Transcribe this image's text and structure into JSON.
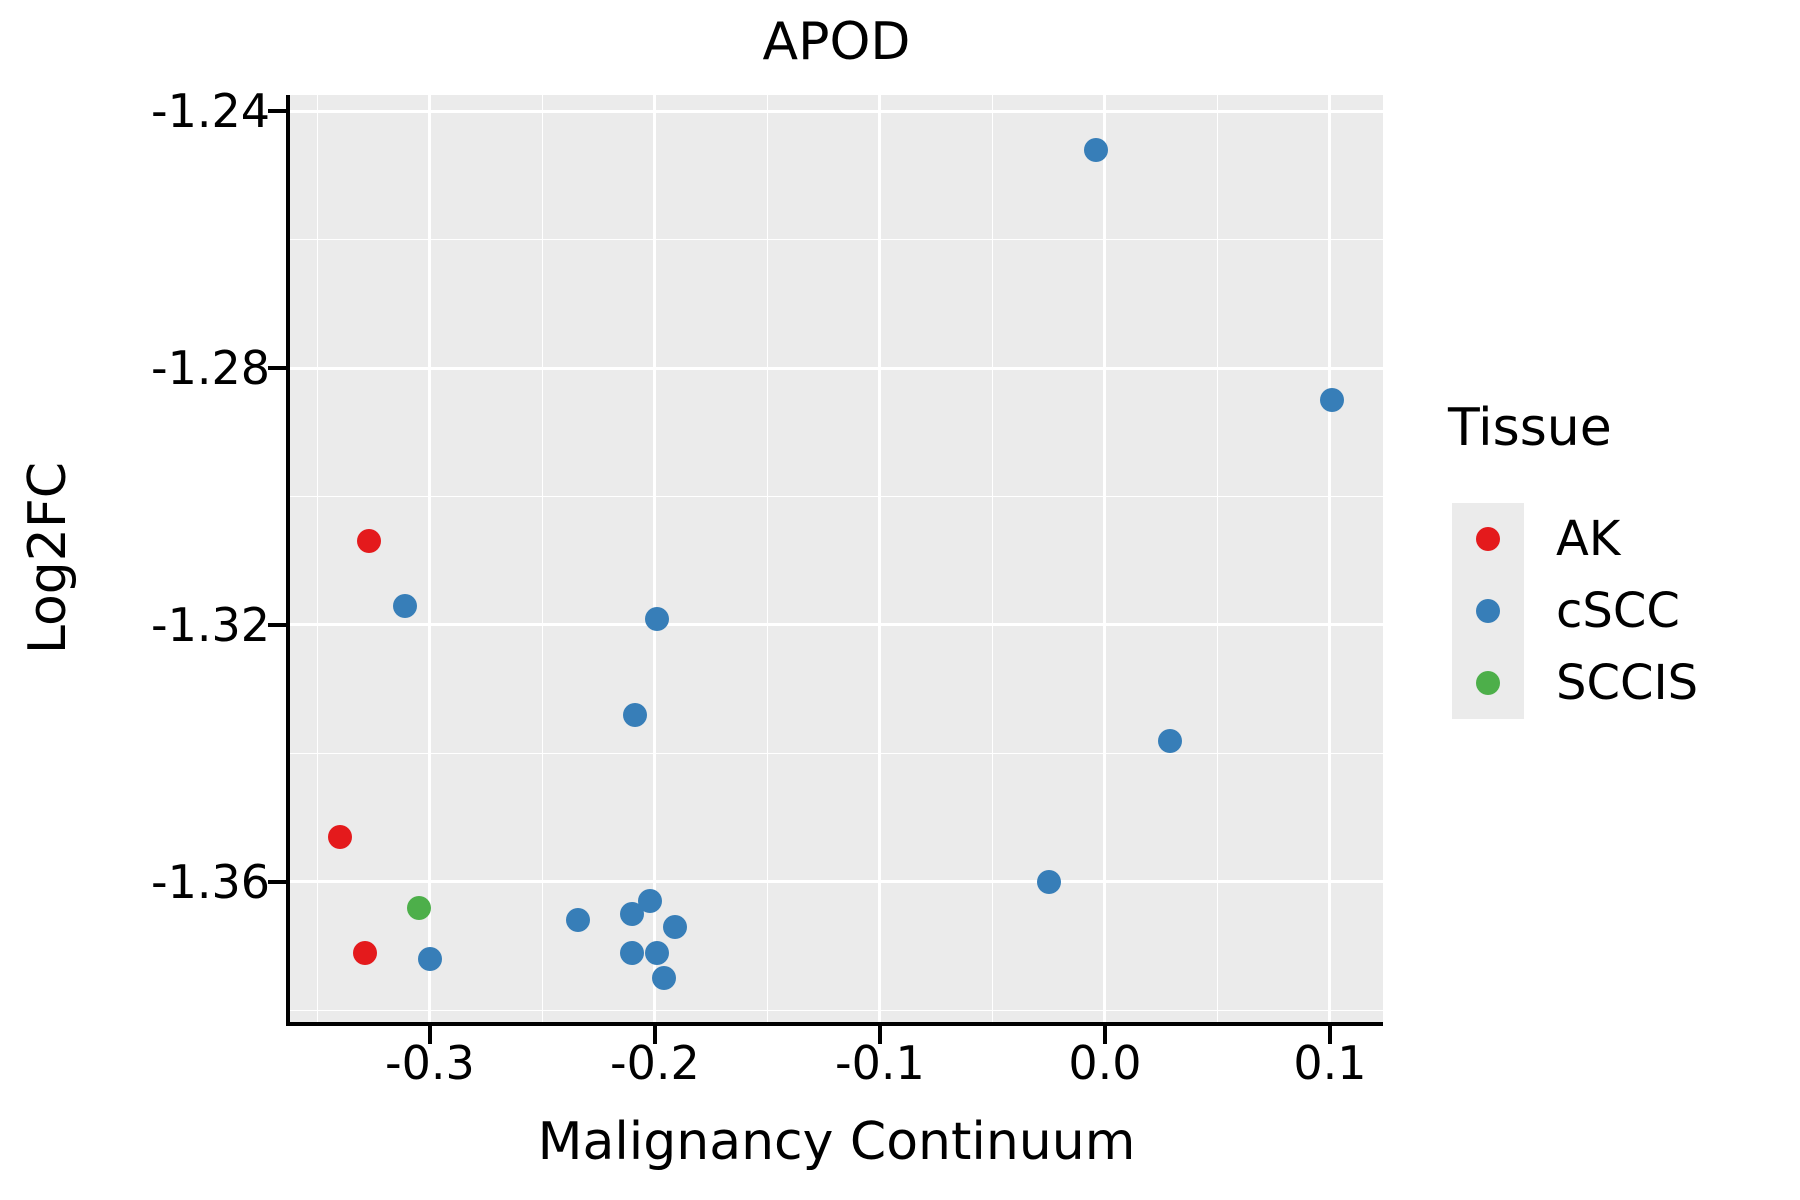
{
  "chart_data": {
    "type": "scatter",
    "title": "APOD",
    "xlabel": "Malignancy Continuum",
    "ylabel": "Log2FC",
    "xlim": [
      -0.3622,
      0.1236
    ],
    "ylim": [
      -1.3818,
      -1.2375
    ],
    "grid": "major white gridlines at ticks, minor white gridlines at midpoints, on light gray panel",
    "panel_color": "#EBEBEB",
    "gridline_color": "#FFFFFF",
    "axis_color": "#000000",
    "x_ticks": [
      {
        "value": -0.3,
        "label": "-0.3"
      },
      {
        "value": -0.2,
        "label": "-0.2"
      },
      {
        "value": -0.1,
        "label": "-0.1"
      },
      {
        "value": 0.0,
        "label": "0.0"
      },
      {
        "value": 0.1,
        "label": "0.1"
      }
    ],
    "y_ticks": [
      {
        "value": -1.24,
        "label": "-1.24"
      },
      {
        "value": -1.28,
        "label": "-1.28"
      },
      {
        "value": -1.32,
        "label": "-1.32"
      },
      {
        "value": -1.36,
        "label": "-1.36"
      }
    ],
    "legend": {
      "title": "Tissue",
      "position": "right",
      "entries": [
        {
          "label": "AK",
          "color": "#E41A1C"
        },
        {
          "label": "cSCC",
          "color": "#377EB8"
        },
        {
          "label": "SCCIS",
          "color": "#4DAF4A"
        }
      ]
    },
    "series": [
      {
        "name": "AK",
        "color": "#E41A1C",
        "points": [
          [
            -0.327,
            -1.307
          ],
          [
            -0.34,
            -1.353
          ],
          [
            -0.329,
            -1.371
          ]
        ]
      },
      {
        "name": "cSCC",
        "color": "#377EB8",
        "points": [
          [
            -0.004,
            -1.246
          ],
          [
            0.101,
            -1.285
          ],
          [
            0.029,
            -1.338
          ],
          [
            -0.025,
            -1.36
          ],
          [
            -0.311,
            -1.317
          ],
          [
            -0.199,
            -1.319
          ],
          [
            -0.209,
            -1.334
          ],
          [
            -0.3,
            -1.372
          ],
          [
            -0.234,
            -1.366
          ],
          [
            -0.21,
            -1.365
          ],
          [
            -0.202,
            -1.363
          ],
          [
            -0.191,
            -1.367
          ],
          [
            -0.21,
            -1.371
          ],
          [
            -0.199,
            -1.371
          ],
          [
            -0.196,
            -1.375
          ]
        ]
      },
      {
        "name": "SCCIS",
        "color": "#4DAF4A",
        "points": [
          [
            -0.305,
            -1.364
          ]
        ]
      }
    ]
  }
}
